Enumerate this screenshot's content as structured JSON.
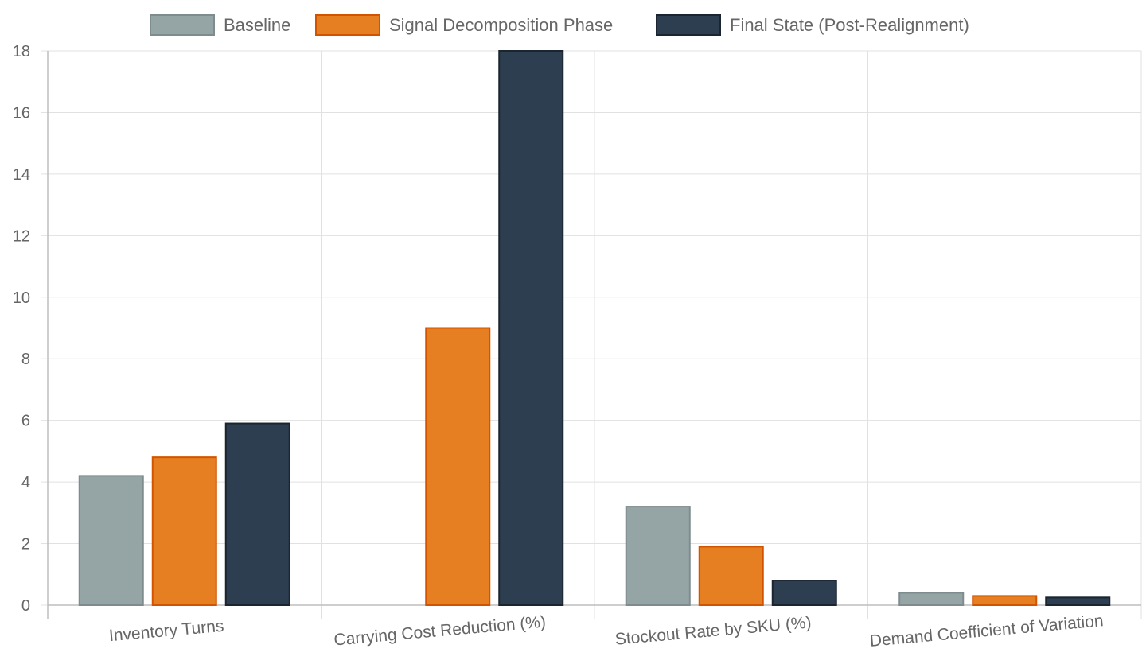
{
  "chart_data": {
    "type": "bar",
    "categories": [
      "Inventory Turns",
      "Carrying Cost Reduction (%)",
      "Stockout Rate by SKU (%)",
      "Demand Coefficient of Variation"
    ],
    "series": [
      {
        "name": "Baseline",
        "values": [
          4.2,
          0,
          3.2,
          0.4
        ],
        "color": "#95a5a6",
        "border": "#7f8c8d"
      },
      {
        "name": "Signal Decomposition Phase",
        "values": [
          4.8,
          9.0,
          1.9,
          0.3
        ],
        "color": "#e67e22",
        "border": "#d35400"
      },
      {
        "name": "Final State (Post-Realignment)",
        "values": [
          5.9,
          18.0,
          0.8,
          0.25
        ],
        "color": "#2c3e50",
        "border": "#1a252f"
      }
    ],
    "ylim": [
      0,
      18
    ],
    "yticks": [
      0,
      2,
      4,
      6,
      8,
      10,
      12,
      14,
      16,
      18
    ],
    "grid": true,
    "legend": "top-center",
    "xlabel": "",
    "ylabel": "",
    "title": ""
  }
}
